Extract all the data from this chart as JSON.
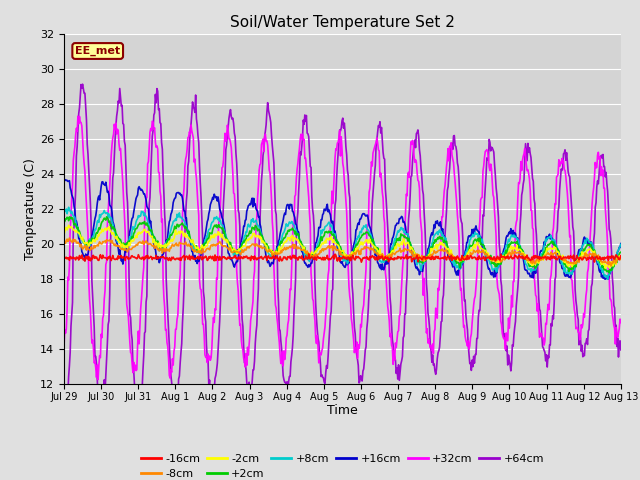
{
  "title": "Soil/Water Temperature Set 2",
  "xlabel": "Time",
  "ylabel": "Temperature (C)",
  "ylim": [
    12,
    32
  ],
  "yticks": [
    12,
    14,
    16,
    18,
    20,
    22,
    24,
    26,
    28,
    30,
    32
  ],
  "fig_bg": "#e0e0e0",
  "plot_bg": "#d4d4d4",
  "label_text": "EE_met",
  "label_bg": "#ffff99",
  "label_fg": "#8B0000",
  "label_border": "#8B0000",
  "colors": {
    "-16cm": "#ff0000",
    "-8cm": "#ff8800",
    "-2cm": "#ffff00",
    "+2cm": "#00cc00",
    "+8cm": "#00cccc",
    "+16cm": "#0000cc",
    "+32cm": "#ff00ff",
    "+64cm": "#9900cc"
  },
  "tick_labels": [
    "Jul 29",
    "Jul 30",
    "Jul 31",
    "Aug 1",
    "Aug 2",
    "Aug 3",
    "Aug 4",
    "Aug 5",
    "Aug 6",
    "Aug 7",
    "Aug 8",
    "Aug 9",
    "Aug 10",
    "Aug 11",
    "Aug 12",
    "Aug 13"
  ],
  "n_days": 15,
  "n_points": 720
}
